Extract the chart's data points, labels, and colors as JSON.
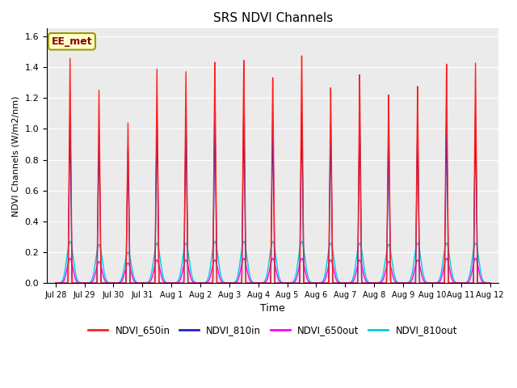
{
  "title": "SRS NDVI Channels",
  "xlabel": "Time",
  "ylabel": "NDVI Channels (W/m2/nm)",
  "ylim": [
    0,
    1.65
  ],
  "yticks": [
    0.0,
    0.2,
    0.4,
    0.6,
    0.8,
    1.0,
    1.2,
    1.4,
    1.6
  ],
  "annotation_text": "EE_met",
  "annotation_color": "#880000",
  "annotation_bg": "#ffffcc",
  "annotation_edge": "#999900",
  "background_color": "#ebebeb",
  "colors": {
    "NDVI_650in": "#ff2020",
    "NDVI_810in": "#2020cc",
    "NDVI_650out": "#ff00ff",
    "NDVI_810out": "#00ccdd"
  },
  "peaks_650in": [
    1.46,
    1.26,
    1.05,
    1.41,
    1.4,
    1.47,
    1.49,
    1.38,
    1.52,
    1.3,
    1.38,
    1.24,
    1.29,
    1.43,
    1.43
  ],
  "peaks_810in": [
    1.12,
    1.0,
    0.88,
    1.11,
    1.09,
    1.13,
    1.14,
    1.08,
    1.14,
    1.05,
    1.08,
    1.02,
    1.04,
    1.1,
    1.1
  ],
  "peaks_650out": [
    0.16,
    0.14,
    0.13,
    0.15,
    0.15,
    0.15,
    0.16,
    0.16,
    0.16,
    0.15,
    0.15,
    0.14,
    0.15,
    0.16,
    0.16
  ],
  "peaks_810out": [
    0.27,
    0.25,
    0.2,
    0.26,
    0.26,
    0.27,
    0.27,
    0.27,
    0.27,
    0.26,
    0.26,
    0.25,
    0.26,
    0.26,
    0.26
  ],
  "xtick_positions": [
    0,
    1,
    2,
    3,
    4,
    5,
    6,
    7,
    8,
    9,
    10,
    11,
    12,
    13,
    14,
    15
  ],
  "xtick_labels": [
    "Jul 28",
    "Jul 29",
    "Jul 30",
    "Jul 31",
    "Aug 1",
    "Aug 2",
    "Aug 3",
    "Aug 4",
    "Aug 5",
    "Aug 6",
    "Aug 7",
    "Aug 8",
    "Aug 9",
    "Aug 10",
    "Aug 11",
    "Aug 12"
  ],
  "xlim": [
    -0.3,
    15.3
  ],
  "linewidth_in": 1.0,
  "linewidth_out": 1.0
}
